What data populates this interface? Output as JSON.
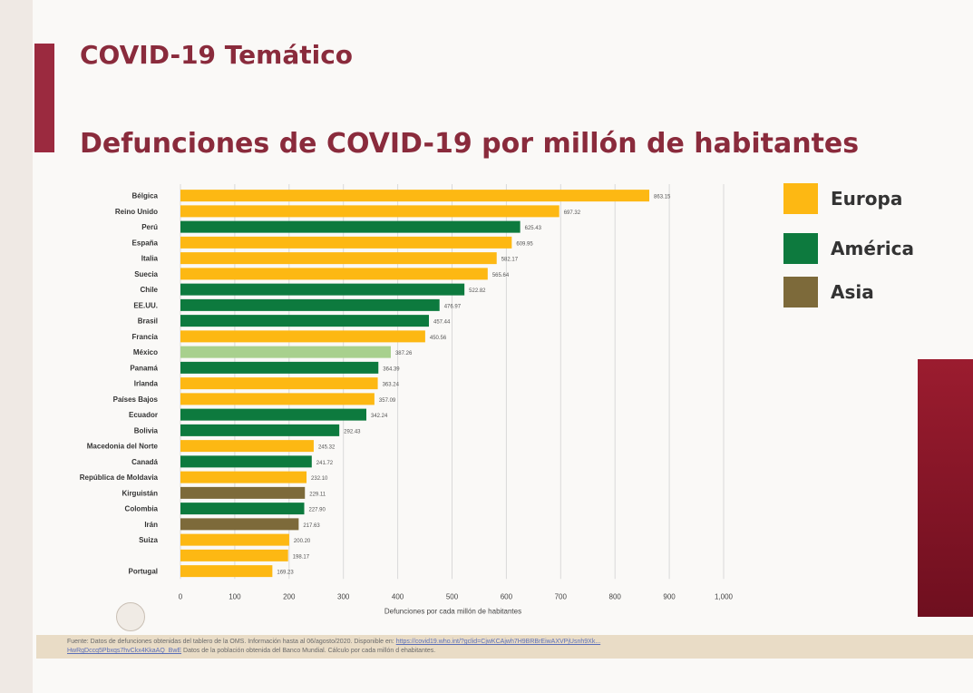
{
  "slide": {
    "title": "COVID-19 Temático",
    "subtitle": "Defunciones de COVID-19 por millón de habitantes"
  },
  "legend": [
    {
      "label": "Europa",
      "color": "#fdb813"
    },
    {
      "label": "América",
      "color": "#0d7a3e"
    },
    {
      "label": "Asia",
      "color": "#7d6a3a"
    }
  ],
  "colors": {
    "Europa": "#fdb813",
    "América": "#0d7a3e",
    "Asia": "#7d6a3a",
    "highlight": "#a8d08d",
    "accent": "#9b2a3f"
  },
  "chart_data": {
    "type": "bar",
    "orientation": "horizontal",
    "xlabel": "Defunciones por cada millón de habitantes",
    "xlim": [
      0,
      1000
    ],
    "xticks": [
      0,
      100,
      200,
      300,
      400,
      500,
      600,
      700,
      800,
      900,
      1000
    ],
    "xtick_labels": [
      "0",
      "100",
      "200",
      "300",
      "400",
      "500",
      "600",
      "700",
      "800",
      "900",
      "1,000"
    ],
    "grid": true,
    "legend_position": "right",
    "categories": [
      "Bélgica",
      "Reino Unido",
      "Perú",
      "España",
      "Italia",
      "Suecia",
      "Chile",
      "EE.UU.",
      "Brasil",
      "Francia",
      "México",
      "Panamá",
      "Irlanda",
      "Países Bajos",
      "Ecuador",
      "Bolivia",
      "Macedonia del Norte",
      "Canadá",
      "República de Moldavia",
      "Kirguistán",
      "Colombia",
      "Irán",
      "Suiza",
      "",
      "Portugal"
    ],
    "values": [
      863.15,
      697.32,
      625.43,
      609.95,
      582.17,
      565.64,
      522.82,
      476.97,
      457.44,
      450.56,
      387.26,
      364.39,
      363.24,
      357.09,
      342.24,
      292.43,
      245.32,
      241.72,
      232.1,
      229.11,
      227.9,
      217.63,
      200.2,
      198.17,
      169.23
    ],
    "value_labels": [
      "863.15",
      "697.32",
      "625.43",
      "609.95",
      "582.17",
      "565.64",
      "522.82",
      "476.97",
      "457.44",
      "450.56",
      "387.26",
      "364.39",
      "363.24",
      "357.09",
      "342.24",
      "292.43",
      "245.32",
      "241.72",
      "232.10",
      "229.11",
      "227.90",
      "217.63",
      "200.20",
      "198.17",
      "169.23"
    ],
    "region": [
      "Europa",
      "Europa",
      "América",
      "Europa",
      "Europa",
      "Europa",
      "América",
      "América",
      "América",
      "Europa",
      "highlight",
      "América",
      "Europa",
      "Europa",
      "América",
      "América",
      "Europa",
      "América",
      "Europa",
      "Asia",
      "America",
      "Asia",
      "Europa",
      "Europa",
      "Europa"
    ]
  },
  "footer": {
    "line1_text": "Fuente: Datos de defunciones obtenidas del tablero de la OMS. Información hasta al 06/agosto/2020. Disponible en:",
    "line1_link": "https://covid19.who.int/?gclid=CjwKCAjwh7H9BRBrEiwAXVPjUsnh9Xk...",
    "line2_link": "HwRgDccq5Pbxqs7hvCkx4KkaAQ_BwE",
    "line2_text": "Datos de la población obtenida del Banco Mundial. Cálculo por cada millón d ehabitantes."
  }
}
